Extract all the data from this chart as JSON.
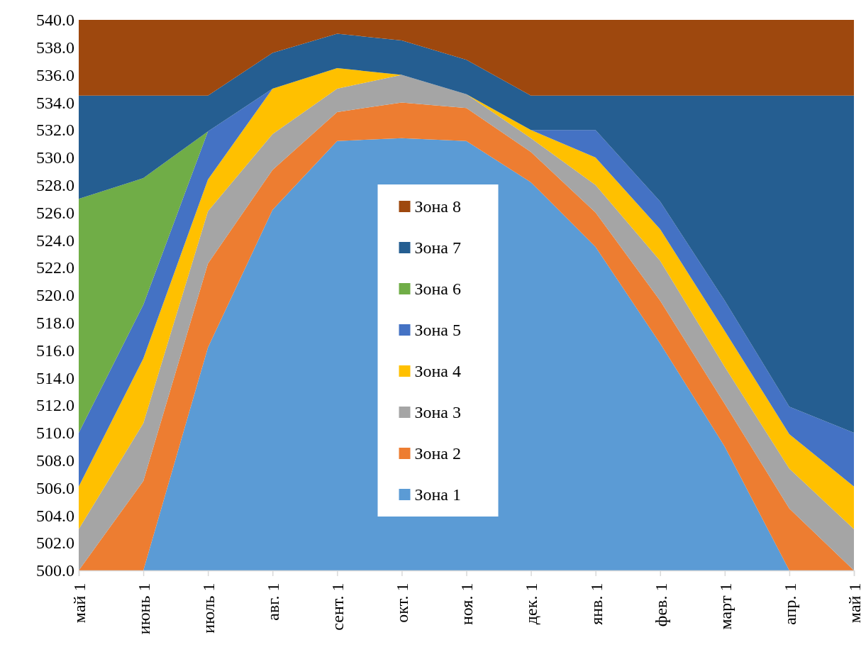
{
  "chart_data": {
    "type": "area",
    "legend": "center",
    "categories": [
      "май 1",
      "июнь 1",
      "июль 1",
      "авг. 1",
      "сент. 1",
      "окт. 1",
      "ноя. 1",
      "дек. 1",
      "янв. 1",
      "фев. 1",
      "март 1",
      "апр. 1",
      "май 1"
    ],
    "ylim": [
      500,
      540
    ],
    "yticks": [
      {
        "value": 500,
        "label": "500.0"
      },
      {
        "value": 502,
        "label": "502.0"
      },
      {
        "value": 504,
        "label": "504.0"
      },
      {
        "value": 506,
        "label": "506.0"
      },
      {
        "value": 508,
        "label": "508.0"
      },
      {
        "value": 510,
        "label": "510.0"
      },
      {
        "value": 512,
        "label": "512.0"
      },
      {
        "value": 514,
        "label": "514.0"
      },
      {
        "value": 516,
        "label": "516.0"
      },
      {
        "value": 518,
        "label": "518.0"
      },
      {
        "value": 520,
        "label": "520.0"
      },
      {
        "value": 522,
        "label": "522.0"
      },
      {
        "value": 524,
        "label": "524.0"
      },
      {
        "value": 526,
        "label": "526.0"
      },
      {
        "value": 528,
        "label": "528.0"
      },
      {
        "value": 530,
        "label": "530.0"
      },
      {
        "value": 532,
        "label": "532.0"
      },
      {
        "value": 534,
        "label": "534.0"
      },
      {
        "value": 536,
        "label": "536.0"
      },
      {
        "value": 538,
        "label": "538.0"
      },
      {
        "value": 540,
        "label": "540.0"
      }
    ],
    "series": [
      {
        "name": "Зона 1",
        "color": "#5b9bd5",
        "values": [
          500,
          500,
          516.2,
          526.2,
          531.2,
          531.4,
          531.2,
          528.2,
          523.5,
          516.5,
          509,
          500,
          500
        ]
      },
      {
        "name": "Зона 2",
        "color": "#ed7d31",
        "values": [
          500,
          506.5,
          522.3,
          529.1,
          533.3,
          534,
          533.6,
          530.4,
          526,
          519.6,
          512.1,
          504.5,
          500
        ]
      },
      {
        "name": "Зона 3",
        "color": "#a5a5a5",
        "values": [
          503,
          510.7,
          526.1,
          531.7,
          535,
          536,
          534.6,
          531.4,
          528,
          522.5,
          514.8,
          507.4,
          503
        ]
      },
      {
        "name": "Зона 4",
        "color": "#ffc000",
        "values": [
          506.1,
          515.4,
          528.4,
          535,
          536.5,
          536,
          534.6,
          532,
          530,
          524.8,
          517.4,
          509.9,
          506.1
        ]
      },
      {
        "name": "Зона 5",
        "color": "#4472c4",
        "values": [
          510,
          519.3,
          531.9,
          535,
          536.5,
          536,
          534.6,
          532,
          532,
          526.8,
          519.6,
          511.9,
          510
        ]
      },
      {
        "name": "Зона 6",
        "color": "#70ad47",
        "values": [
          527,
          528.5,
          531.9,
          null,
          null,
          null,
          null,
          null,
          null,
          null,
          null,
          null,
          null
        ]
      },
      {
        "name": "Зона 7",
        "color": "#255e91",
        "values": [
          534.5,
          534.5,
          534.5,
          537.6,
          539,
          538.5,
          537.1,
          534.5,
          534.5,
          534.5,
          534.5,
          534.5,
          534.5
        ]
      },
      {
        "name": "Зона 8",
        "color": "#9e480e",
        "values": [
          540,
          540,
          540,
          540,
          540,
          540,
          540,
          540,
          540,
          540,
          540,
          540,
          540
        ]
      }
    ]
  }
}
